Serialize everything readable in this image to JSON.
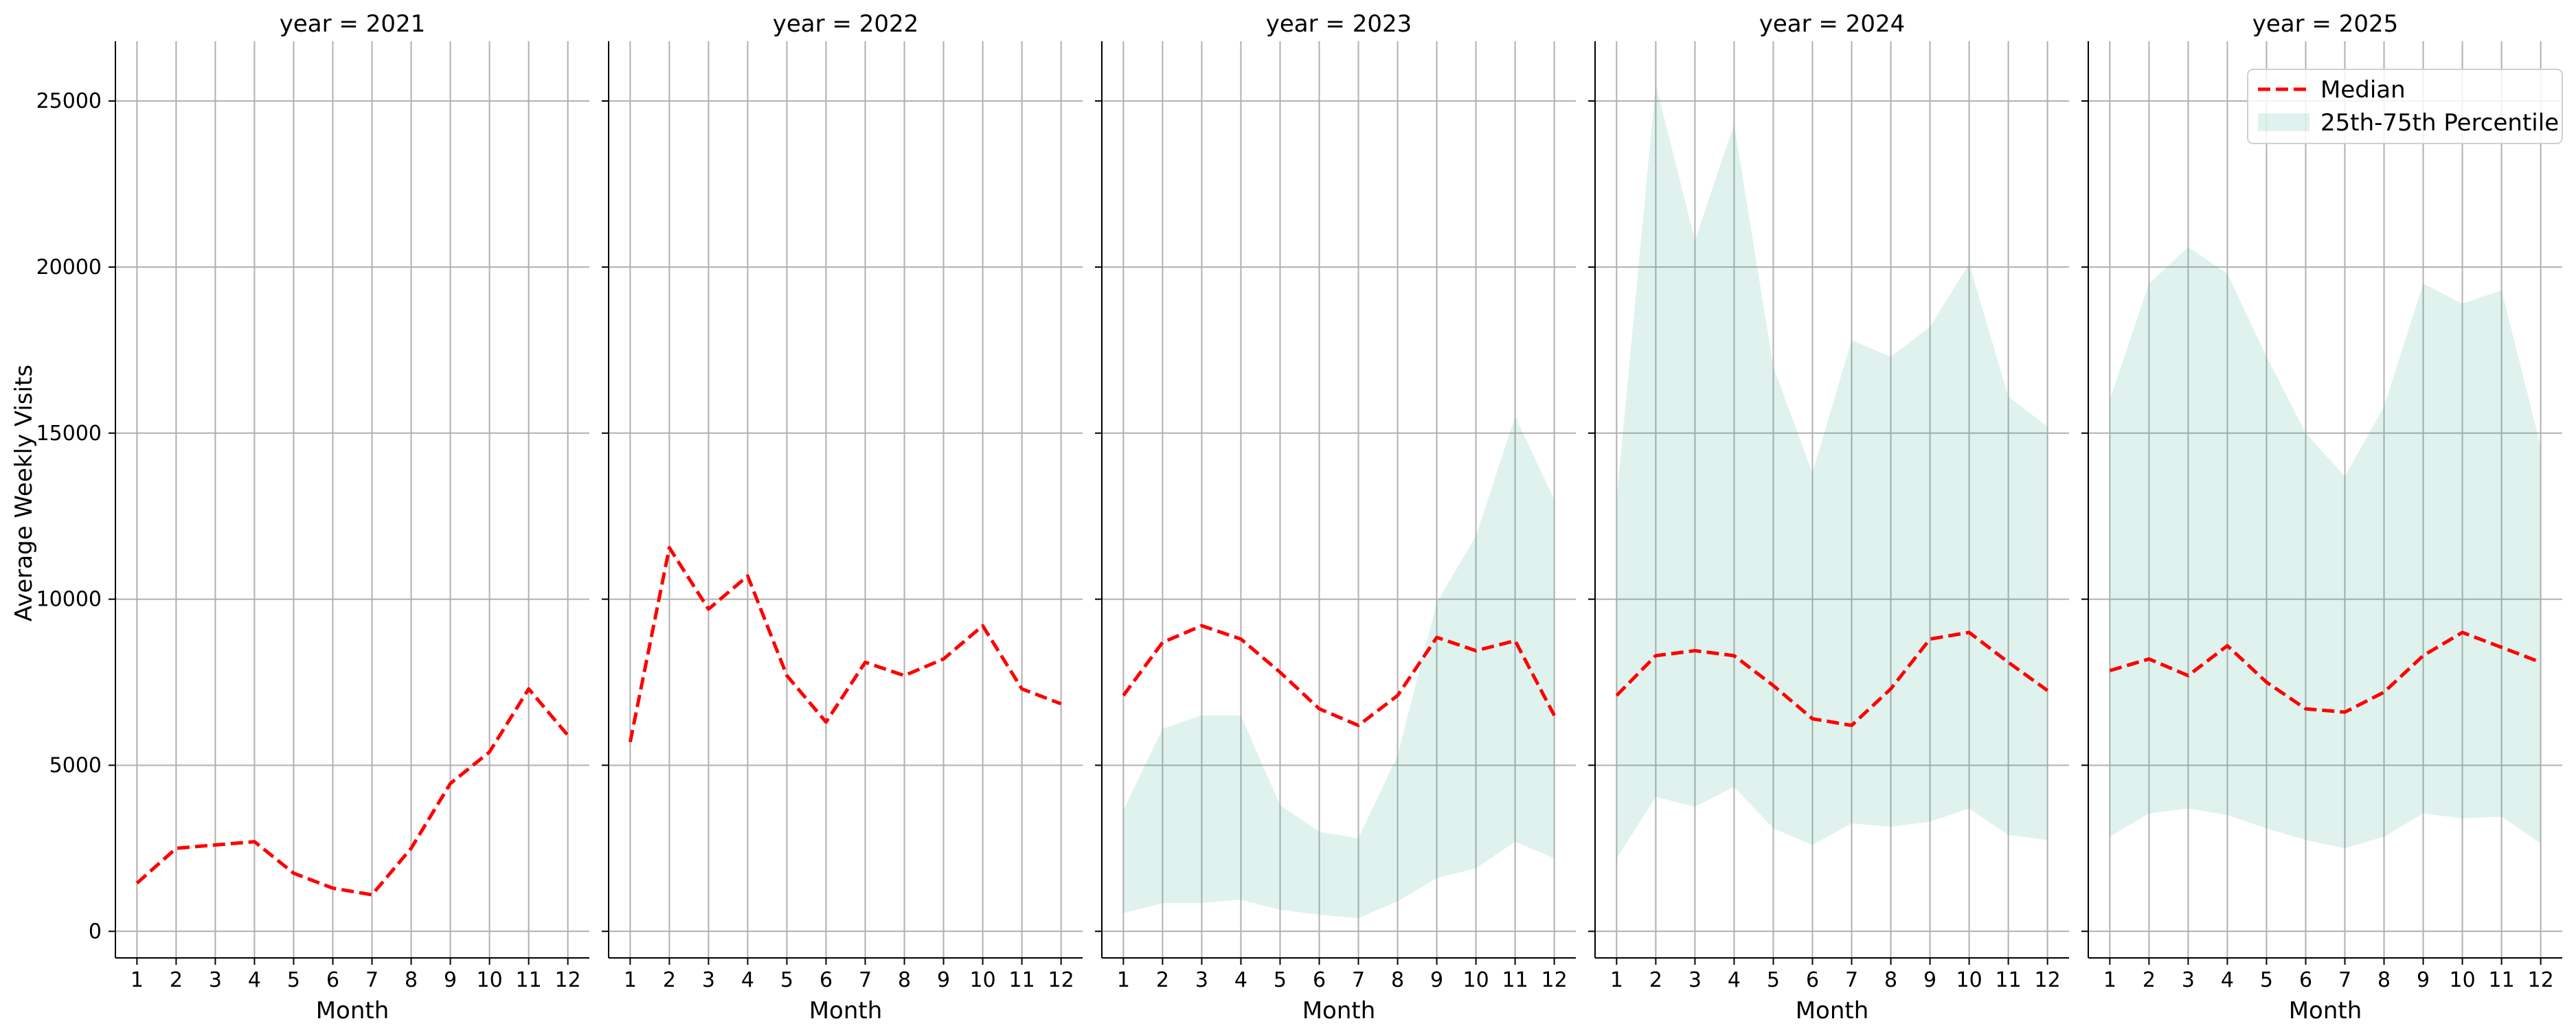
{
  "chart_data": {
    "type": "line",
    "xlabel": "Month",
    "ylabel": "Average Weekly Visits",
    "x": [
      1,
      2,
      3,
      4,
      5,
      6,
      7,
      8,
      9,
      10,
      11,
      12
    ],
    "xticks": [
      "1",
      "2",
      "3",
      "4",
      "5",
      "6",
      "7",
      "8",
      "9",
      "10",
      "11",
      "12"
    ],
    "yticks": [
      0,
      5000,
      10000,
      15000,
      20000,
      25000
    ],
    "ylim": [
      -800,
      26800
    ],
    "xlim": [
      0.45,
      12.55
    ],
    "grid": true,
    "sharey": true,
    "legend": {
      "placement": "top-right",
      "panel": 4,
      "entries": [
        {
          "label": "Median",
          "style": "dashed-line",
          "color": "#ff0000"
        },
        {
          "label": "25th-75th Percentile",
          "style": "band",
          "color": "#2eaa86"
        }
      ]
    },
    "colors": {
      "median": "#ff0000",
      "band": "#2eaa86",
      "band_opacity": 0.15,
      "grid": "#b0b0b0"
    },
    "panels": [
      {
        "title": "year = 2021",
        "median": [
          1450,
          2500,
          2600,
          2700,
          1750,
          1300,
          1100,
          2500,
          4450,
          5400,
          7300,
          5900
        ],
        "q25": null,
        "q75": null
      },
      {
        "title": "year = 2022",
        "median": [
          5700,
          11550,
          9700,
          10700,
          7700,
          6300,
          8100,
          7700,
          8200,
          9200,
          7300,
          6850
        ],
        "q25": null,
        "q75": null
      },
      {
        "title": "year = 2023",
        "median": [
          7100,
          8700,
          9200,
          8800,
          7800,
          6700,
          6200,
          7100,
          8850,
          8450,
          8750,
          6500
        ],
        "q25": [
          550,
          850,
          850,
          950,
          650,
          500,
          400,
          900,
          1600,
          1900,
          2700,
          2200
        ],
        "q75": [
          3650,
          6100,
          6500,
          6500,
          3800,
          3000,
          2800,
          5300,
          9900,
          11900,
          15500,
          13000
        ]
      },
      {
        "title": "year = 2024",
        "median": [
          7100,
          8300,
          8450,
          8300,
          7400,
          6400,
          6200,
          7300,
          8800,
          9000,
          8100,
          7250
        ],
        "q25": [
          2200,
          4050,
          3750,
          4350,
          3100,
          2600,
          3250,
          3150,
          3300,
          3700,
          2900,
          2750
        ],
        "q75": [
          13000,
          25500,
          20800,
          24300,
          17000,
          13800,
          17800,
          17300,
          18200,
          20100,
          16100,
          15200
        ]
      },
      {
        "title": "year = 2025",
        "median": [
          7850,
          8200,
          7700,
          8600,
          7500,
          6700,
          6600,
          7200,
          8300,
          9000,
          8550,
          8100
        ],
        "q25": [
          2850,
          3550,
          3700,
          3500,
          3100,
          2750,
          2500,
          2850,
          3550,
          3400,
          3450,
          2650
        ],
        "q75": [
          16000,
          19500,
          20600,
          19800,
          17300,
          15000,
          13700,
          15800,
          19500,
          18900,
          19300,
          14600
        ]
      }
    ]
  }
}
